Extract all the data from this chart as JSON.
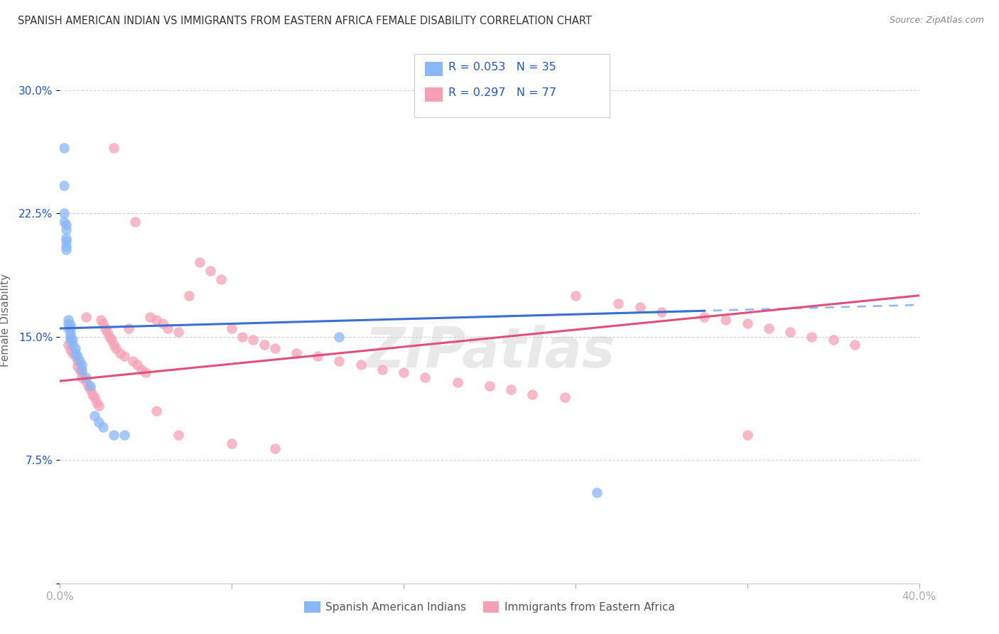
{
  "title": "SPANISH AMERICAN INDIAN VS IMMIGRANTS FROM EASTERN AFRICA FEMALE DISABILITY CORRELATION CHART",
  "source": "Source: ZipAtlas.com",
  "ylabel": "Female Disability",
  "xlim": [
    0.0,
    0.4
  ],
  "ylim": [
    0.0,
    0.32
  ],
  "grid_color": "#cccccc",
  "background_color": "#ffffff",
  "watermark": "ZIPatlas",
  "blue_color": "#89b8f7",
  "pink_color": "#f5a0b5",
  "blue_line_color": "#3b6fd4",
  "pink_line_color": "#e0507a",
  "title_color": "#333333",
  "label_color": "#2255cc",
  "series1_label": "Spanish American Indians",
  "series2_label": "Immigrants from Eastern Africa",
  "blue_x": [
    0.002,
    0.002,
    0.002,
    0.002,
    0.003,
    0.003,
    0.003,
    0.003,
    0.003,
    0.003,
    0.004,
    0.004,
    0.004,
    0.005,
    0.005,
    0.005,
    0.005,
    0.005,
    0.006,
    0.006,
    0.007,
    0.007,
    0.008,
    0.009,
    0.01,
    0.01,
    0.012,
    0.014,
    0.016,
    0.018,
    0.02,
    0.025,
    0.03,
    0.13,
    0.25
  ],
  "blue_y": [
    0.265,
    0.242,
    0.225,
    0.22,
    0.218,
    0.215,
    0.21,
    0.208,
    0.205,
    0.203,
    0.16,
    0.158,
    0.155,
    0.157,
    0.155,
    0.152,
    0.15,
    0.148,
    0.148,
    0.145,
    0.143,
    0.14,
    0.138,
    0.135,
    0.133,
    0.13,
    0.125,
    0.12,
    0.102,
    0.098,
    0.095,
    0.09,
    0.09,
    0.15,
    0.055
  ],
  "pink_x": [
    0.004,
    0.005,
    0.006,
    0.007,
    0.008,
    0.008,
    0.009,
    0.01,
    0.01,
    0.012,
    0.012,
    0.013,
    0.014,
    0.015,
    0.016,
    0.017,
    0.018,
    0.019,
    0.02,
    0.021,
    0.022,
    0.023,
    0.024,
    0.025,
    0.026,
    0.028,
    0.03,
    0.032,
    0.034,
    0.036,
    0.038,
    0.04,
    0.042,
    0.045,
    0.048,
    0.05,
    0.055,
    0.06,
    0.065,
    0.07,
    0.075,
    0.08,
    0.085,
    0.09,
    0.095,
    0.1,
    0.11,
    0.12,
    0.13,
    0.14,
    0.15,
    0.16,
    0.17,
    0.185,
    0.2,
    0.21,
    0.22,
    0.235,
    0.24,
    0.26,
    0.27,
    0.28,
    0.3,
    0.31,
    0.32,
    0.33,
    0.34,
    0.35,
    0.36,
    0.37,
    0.025,
    0.035,
    0.045,
    0.055,
    0.08,
    0.1,
    0.32
  ],
  "pink_y": [
    0.145,
    0.142,
    0.14,
    0.138,
    0.135,
    0.132,
    0.13,
    0.128,
    0.125,
    0.123,
    0.162,
    0.12,
    0.118,
    0.115,
    0.113,
    0.11,
    0.108,
    0.16,
    0.158,
    0.155,
    0.153,
    0.15,
    0.148,
    0.145,
    0.143,
    0.14,
    0.138,
    0.155,
    0.135,
    0.133,
    0.13,
    0.128,
    0.162,
    0.16,
    0.158,
    0.155,
    0.153,
    0.175,
    0.195,
    0.19,
    0.185,
    0.155,
    0.15,
    0.148,
    0.145,
    0.143,
    0.14,
    0.138,
    0.135,
    0.133,
    0.13,
    0.128,
    0.125,
    0.122,
    0.12,
    0.118,
    0.115,
    0.113,
    0.175,
    0.17,
    0.168,
    0.165,
    0.162,
    0.16,
    0.158,
    0.155,
    0.153,
    0.15,
    0.148,
    0.145,
    0.265,
    0.22,
    0.105,
    0.09,
    0.085,
    0.082,
    0.09
  ]
}
